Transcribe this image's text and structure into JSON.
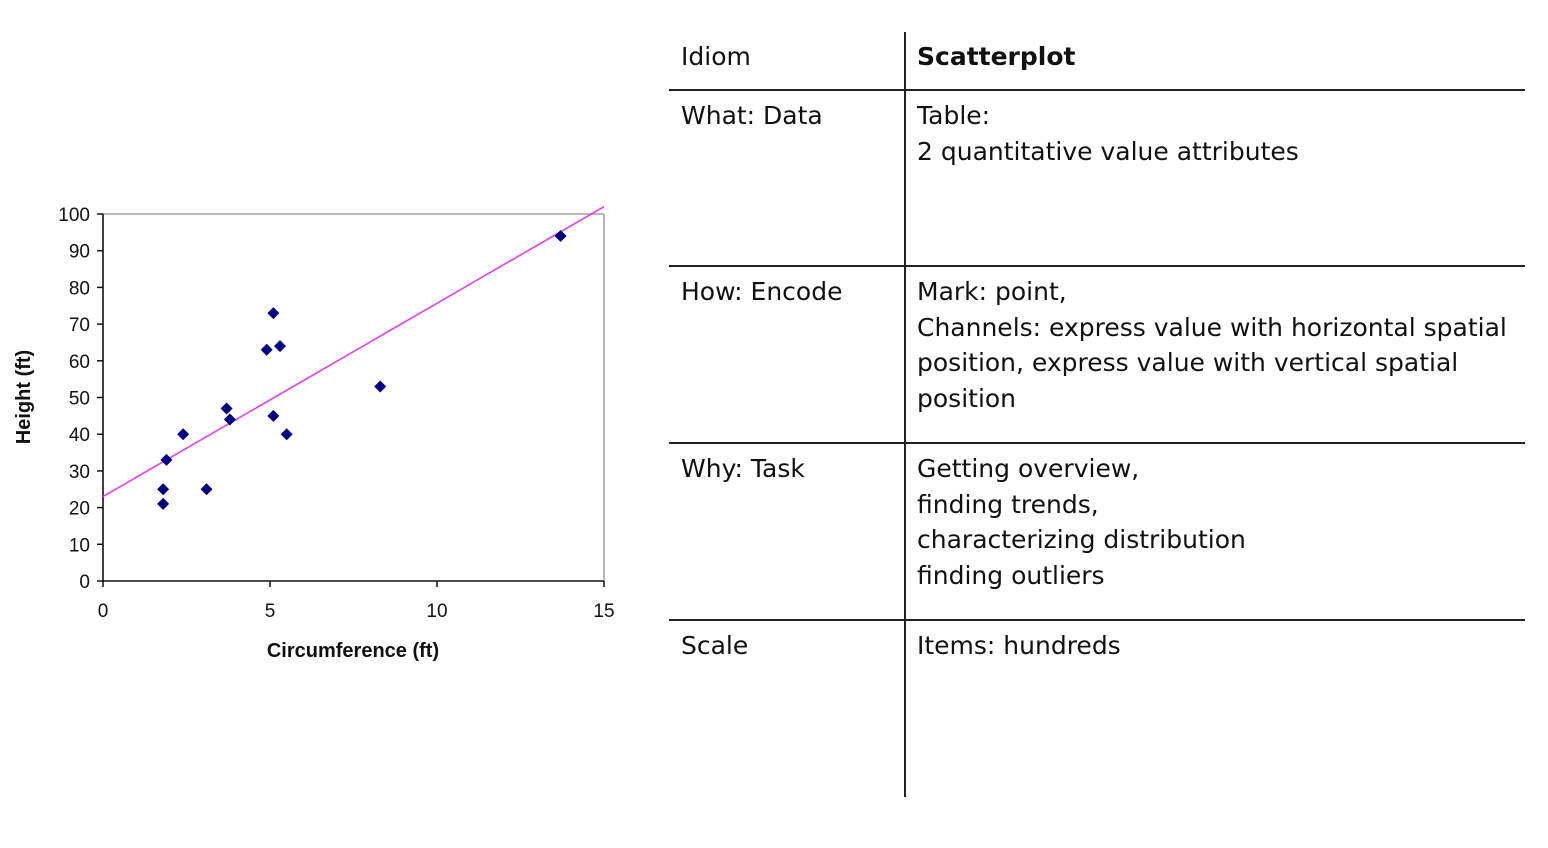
{
  "chart_data": {
    "type": "scatter",
    "title": "",
    "xlabel": "Circumference (ft)",
    "ylabel": "Height (ft)",
    "xlim": [
      0,
      15
    ],
    "ylim": [
      0,
      100
    ],
    "x_ticks": [
      "0",
      "5",
      "10",
      "15"
    ],
    "y_ticks": [
      "0",
      "10",
      "20",
      "30",
      "40",
      "50",
      "60",
      "70",
      "80",
      "90",
      "100"
    ],
    "grid": false,
    "legend": "none",
    "marker": "diamond",
    "marker_color": "#000080",
    "trendline_color": "#e040e8",
    "points": [
      {
        "x": 1.8,
        "y": 21
      },
      {
        "x": 1.8,
        "y": 25
      },
      {
        "x": 1.9,
        "y": 33
      },
      {
        "x": 2.4,
        "y": 40
      },
      {
        "x": 3.1,
        "y": 25
      },
      {
        "x": 3.7,
        "y": 47
      },
      {
        "x": 3.8,
        "y": 44
      },
      {
        "x": 4.9,
        "y": 63
      },
      {
        "x": 5.1,
        "y": 73
      },
      {
        "x": 5.1,
        "y": 45
      },
      {
        "x": 5.3,
        "y": 64
      },
      {
        "x": 5.5,
        "y": 40
      },
      {
        "x": 8.3,
        "y": 53
      },
      {
        "x": 13.7,
        "y": 94
      }
    ],
    "trendline": {
      "x": [
        0,
        15
      ],
      "y": [
        23,
        102
      ]
    }
  },
  "table": {
    "rows": [
      {
        "label": "Idiom",
        "value": [
          "Scatterplot"
        ],
        "bold": true
      },
      {
        "label": "What: Data",
        "value": [
          "Table:",
          "2 quantitative value attributes"
        ]
      },
      {
        "label": "How: Encode",
        "value": [
          "Mark: point,",
          "Channels: express value with horizontal spatial",
          "position, express value with vertical spatial",
          "position"
        ]
      },
      {
        "label": "Why: Task",
        "value": [
          "Getting overview,",
          "finding trends,",
          "characterizing distribution",
          "finding outliers"
        ]
      },
      {
        "label": "Scale",
        "value": [
          "Items: hundreds"
        ]
      }
    ]
  }
}
